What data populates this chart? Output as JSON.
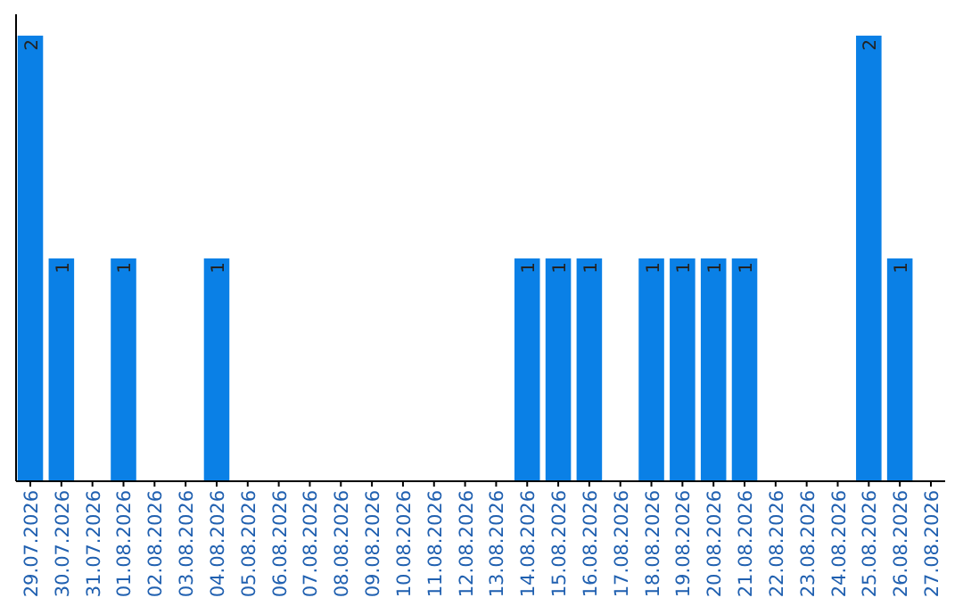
{
  "chart_data": {
    "type": "bar",
    "color": "#0a80e6",
    "data_labels": true,
    "categories": [
      "29.07.2026",
      "30.07.2026",
      "31.07.2026",
      "01.08.2026",
      "02.08.2026",
      "03.08.2026",
      "04.08.2026",
      "05.08.2026",
      "06.08.2026",
      "07.08.2026",
      "08.08.2026",
      "09.08.2026",
      "10.08.2026",
      "11.08.2026",
      "12.08.2026",
      "13.08.2026",
      "14.08.2026",
      "15.08.2026",
      "16.08.2026",
      "17.08.2026",
      "18.08.2026",
      "19.08.2026",
      "20.08.2026",
      "21.08.2026",
      "22.08.2026",
      "23.08.2026",
      "24.08.2026",
      "25.08.2026",
      "26.08.2026",
      "27.08.2026"
    ],
    "values": [
      2,
      1,
      0,
      1,
      0,
      0,
      1,
      0,
      0,
      0,
      0,
      0,
      0,
      0,
      0,
      0,
      1,
      1,
      1,
      0,
      1,
      1,
      1,
      1,
      0,
      0,
      0,
      2,
      1,
      0
    ],
    "value_labels": [
      "2",
      "1",
      null,
      "1",
      null,
      null,
      "1",
      null,
      null,
      null,
      null,
      null,
      null,
      null,
      null,
      null,
      "1",
      "1",
      "1",
      null,
      "1",
      "1",
      "1",
      "1",
      null,
      null,
      null,
      "2",
      "1",
      null
    ]
  }
}
